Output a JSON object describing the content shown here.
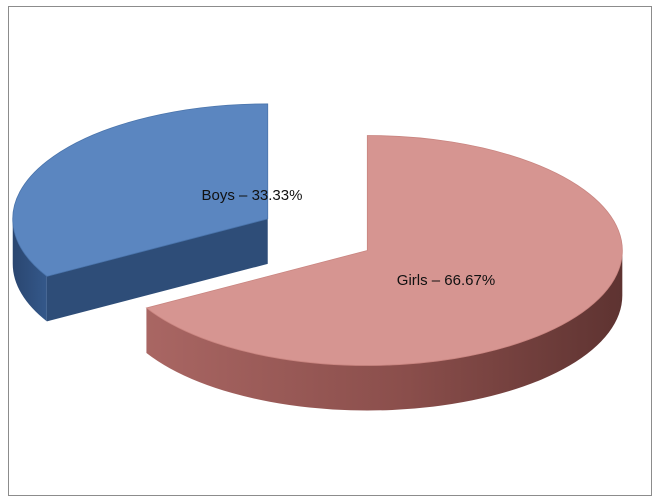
{
  "chart_data": {
    "type": "pie",
    "style": "3d-exploded",
    "title": "",
    "legend": "none",
    "slices": [
      {
        "category": "Boys",
        "value": 33.33,
        "label": "Boys – 33.33%",
        "color": "#5b86c0",
        "side_color": "#2c4a72"
      },
      {
        "category": "Girls",
        "value": 66.67,
        "label": "Girls – 66.67%",
        "color": "#d69591",
        "side_color": "#8a4e4b"
      }
    ]
  }
}
